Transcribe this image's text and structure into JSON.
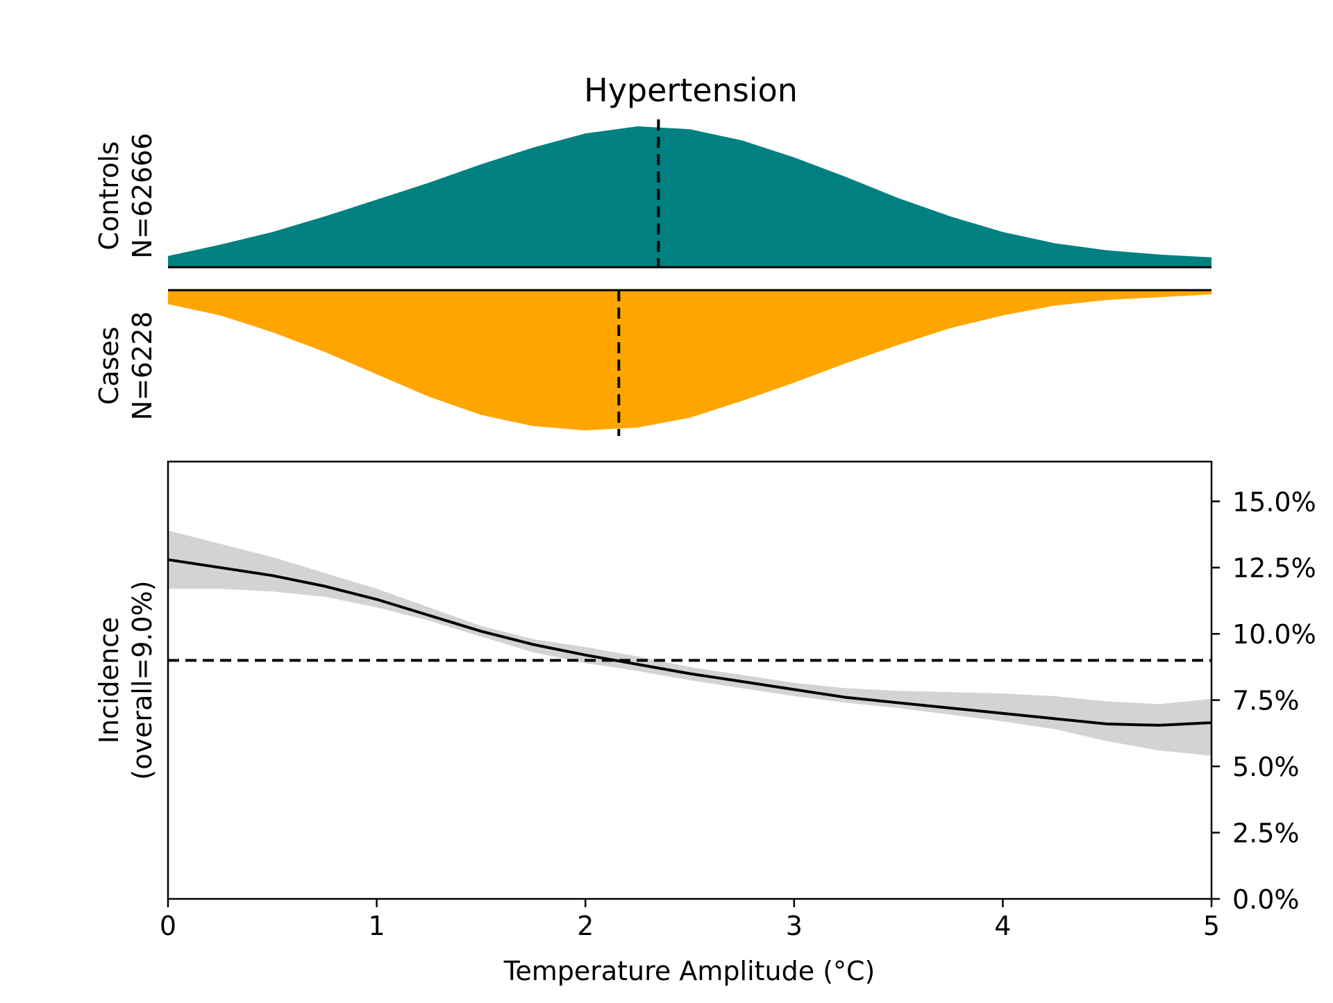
{
  "chart_data": [
    {
      "type": "area",
      "title": "Hypertension",
      "panel": "controls-density",
      "ylabel_line1": "Controls",
      "ylabel_line2": "N=62666",
      "xlim": [
        0,
        5
      ],
      "color": "#008080",
      "mean_line_x": 2.35,
      "x": [
        0,
        0.25,
        0.5,
        0.75,
        1.0,
        1.25,
        1.5,
        1.75,
        2.0,
        2.25,
        2.5,
        2.75,
        3.0,
        3.25,
        3.5,
        3.75,
        4.0,
        4.25,
        4.5,
        4.75,
        5.0
      ],
      "values": [
        0.08,
        0.16,
        0.25,
        0.36,
        0.48,
        0.6,
        0.73,
        0.85,
        0.95,
        1.0,
        0.98,
        0.9,
        0.78,
        0.64,
        0.49,
        0.36,
        0.25,
        0.17,
        0.12,
        0.09,
        0.07
      ]
    },
    {
      "type": "area",
      "panel": "cases-density",
      "ylabel_line1": "Cases",
      "ylabel_line2": "N=6228",
      "xlim": [
        0,
        5
      ],
      "color": "#FFA500",
      "mean_line_x": 2.16,
      "x": [
        0,
        0.25,
        0.5,
        0.75,
        1.0,
        1.25,
        1.5,
        1.75,
        2.0,
        2.25,
        2.5,
        2.75,
        3.0,
        3.25,
        3.5,
        3.75,
        4.0,
        4.25,
        4.5,
        4.75,
        5.0
      ],
      "values": [
        0.1,
        0.18,
        0.3,
        0.44,
        0.6,
        0.76,
        0.89,
        0.97,
        1.0,
        0.98,
        0.91,
        0.79,
        0.66,
        0.52,
        0.39,
        0.27,
        0.18,
        0.11,
        0.07,
        0.05,
        0.03
      ]
    },
    {
      "type": "line",
      "panel": "incidence",
      "xlabel": "Temperature Amplitude (°C)",
      "ylabel_line1": "Incidence",
      "ylabel_line2": "(overall=9.0%)",
      "xlim": [
        0,
        5
      ],
      "ylim": [
        0,
        16.5
      ],
      "xticks": [
        0,
        1,
        2,
        3,
        4,
        5
      ],
      "xtick_labels": [
        "0",
        "1",
        "2",
        "3",
        "4",
        "5"
      ],
      "yticks": [
        0,
        2.5,
        5,
        7.5,
        10,
        12.5,
        15
      ],
      "ytick_labels": [
        "0.0%",
        "2.5%",
        "5.0%",
        "7.5%",
        "10.0%",
        "12.5%",
        "15.0%"
      ],
      "reference_line_y": 9.0,
      "line_color": "#000000",
      "band_color": "#d3d3d3",
      "x": [
        0,
        0.25,
        0.5,
        0.75,
        1.0,
        1.25,
        1.5,
        1.75,
        2.0,
        2.25,
        2.5,
        2.75,
        3.0,
        3.25,
        3.5,
        3.75,
        4.0,
        4.25,
        4.5,
        4.75,
        5.0
      ],
      "values": [
        12.8,
        12.5,
        12.2,
        11.8,
        11.3,
        10.7,
        10.1,
        9.6,
        9.2,
        8.85,
        8.5,
        8.2,
        7.9,
        7.6,
        7.4,
        7.2,
        7.0,
        6.8,
        6.6,
        6.55,
        6.65
      ],
      "lower": [
        11.7,
        11.7,
        11.6,
        11.4,
        11.0,
        10.5,
        9.9,
        9.3,
        8.9,
        8.6,
        8.25,
        7.95,
        7.65,
        7.4,
        7.2,
        6.95,
        6.7,
        6.4,
        5.95,
        5.6,
        5.4
      ],
      "upper": [
        13.9,
        13.4,
        12.9,
        12.3,
        11.7,
        11.0,
        10.3,
        9.8,
        9.5,
        9.15,
        8.75,
        8.45,
        8.15,
        7.95,
        7.85,
        7.8,
        7.75,
        7.65,
        7.45,
        7.35,
        7.55
      ]
    }
  ]
}
